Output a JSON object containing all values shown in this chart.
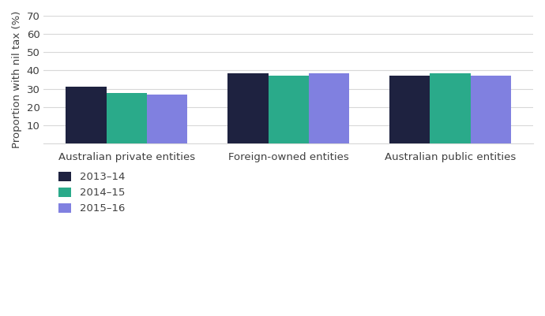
{
  "categories": [
    "Australian private entities",
    "Foreign-owned entities",
    "Australian public entities"
  ],
  "series": {
    "2013–14": [
      31.0,
      38.5,
      37.0
    ],
    "2014–15": [
      27.5,
      37.0,
      38.5
    ],
    "2015–16": [
      27.0,
      38.5,
      37.0
    ]
  },
  "series_colors": {
    "2013–14": "#1e2240",
    "2014–15": "#2aaa8a",
    "2015–16": "#8080e0"
  },
  "series_order": [
    "2013–14",
    "2014–15",
    "2015–16"
  ],
  "ylabel": "Proportion with nil tax (%)",
  "ylim": [
    0,
    70
  ],
  "yticks": [
    10,
    20,
    30,
    40,
    50,
    60,
    70
  ],
  "background_color": "#ffffff",
  "bar_width": 0.25,
  "grid_color": "#d8d8d8",
  "tick_label_fontsize": 9.5,
  "ylabel_fontsize": 9.5,
  "legend_fontsize": 9.5,
  "text_color": "#404040"
}
